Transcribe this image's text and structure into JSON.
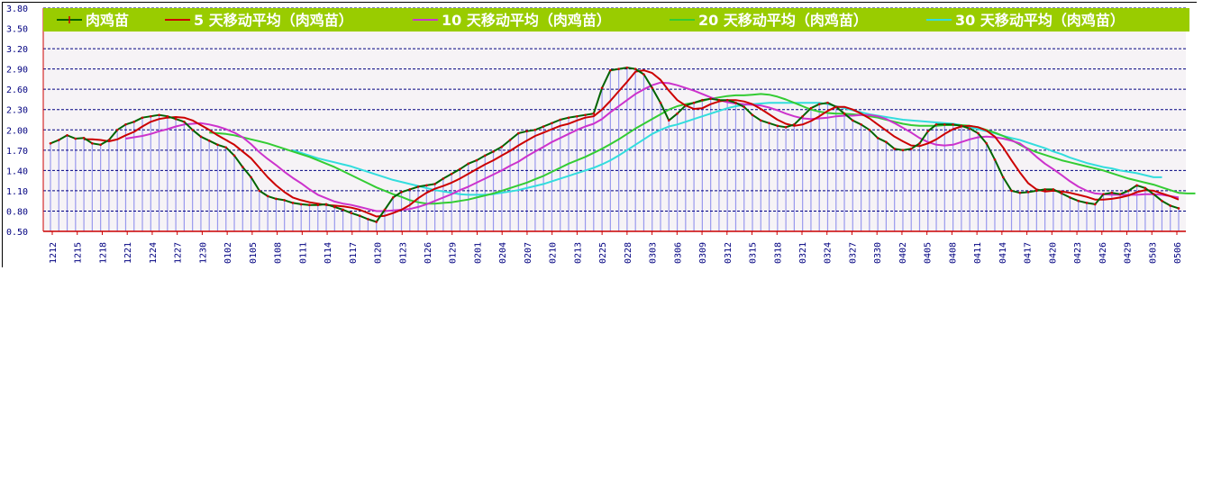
{
  "chart_data": {
    "type": "line",
    "title": "",
    "xlabel": "",
    "ylabel": "",
    "ylim": [
      0.5,
      3.8
    ],
    "yticks": [
      "3.80",
      "3.50",
      "3.20",
      "2.90",
      "2.60",
      "2.30",
      "2.00",
      "1.70",
      "1.40",
      "1.10",
      "0.80",
      "0.50"
    ],
    "grid": true,
    "legend_position": "top",
    "legend_bg": "#99cc00",
    "colors": {
      "price": "#006400",
      "ma5": "#cc0000",
      "ma10": "#cc33cc",
      "ma20": "#33cc33",
      "ma30": "#33dddd",
      "grid": "#000080",
      "bars": "#9999ee",
      "axis": "#cc0000"
    },
    "x_tick_labels": [
      "1212",
      "1215",
      "1218",
      "1221",
      "1224",
      "1227",
      "1230",
      "0102",
      "0105",
      "0108",
      "0111",
      "0114",
      "0117",
      "0120",
      "0123",
      "0126",
      "0129",
      "0201",
      "0204",
      "0207",
      "0210",
      "0213",
      "0225",
      "0228",
      "0303",
      "0306",
      "0309",
      "0312",
      "0315",
      "0318",
      "0321",
      "0324",
      "0327",
      "0330",
      "0402",
      "0405",
      "0408",
      "0411",
      "0414",
      "0417",
      "0420",
      "0423",
      "0426",
      "0429",
      "0503",
      "0506"
    ],
    "series": [
      {
        "name": "肉鸡苗",
        "values": [
          1.8,
          1.85,
          1.92,
          1.87,
          1.88,
          1.8,
          1.78,
          1.85,
          2.0,
          2.08,
          2.12,
          2.18,
          2.2,
          2.22,
          2.2,
          2.16,
          2.12,
          2.0,
          1.9,
          1.84,
          1.78,
          1.74,
          1.62,
          1.45,
          1.3,
          1.1,
          1.02,
          0.98,
          0.96,
          0.92,
          0.9,
          0.89,
          0.89,
          0.9,
          0.86,
          0.82,
          0.77,
          0.73,
          0.68,
          0.64,
          0.82,
          1.0,
          1.08,
          1.12,
          1.16,
          1.18,
          1.2,
          1.28,
          1.35,
          1.42,
          1.5,
          1.55,
          1.62,
          1.68,
          1.75,
          1.85,
          1.95,
          1.98,
          2.0,
          2.05,
          2.1,
          2.15,
          2.18,
          2.2,
          2.22,
          2.24,
          2.62,
          2.88,
          2.9,
          2.92,
          2.9,
          2.82,
          2.62,
          2.4,
          2.14,
          2.24,
          2.36,
          2.4,
          2.44,
          2.46,
          2.44,
          2.44,
          2.4,
          2.34,
          2.22,
          2.14,
          2.1,
          2.06,
          2.04,
          2.08,
          2.2,
          2.32,
          2.38,
          2.4,
          2.34,
          2.24,
          2.14,
          2.08,
          2.0,
          1.88,
          1.82,
          1.72,
          1.7,
          1.72,
          1.8,
          1.98,
          2.08,
          2.08,
          2.08,
          2.06,
          2.02,
          1.95,
          1.8,
          1.56,
          1.3,
          1.1,
          1.07,
          1.08,
          1.1,
          1.12,
          1.12,
          1.06,
          1.0,
          0.95,
          0.92,
          0.9,
          1.05,
          1.07,
          1.05,
          1.1,
          1.18,
          1.14,
          1.05,
          0.95,
          0.88,
          0.84
        ]
      },
      {
        "name": "5 天移动平均（肉鸡苗）",
        "values": [
          null,
          null,
          null,
          null,
          1.86,
          1.86,
          1.85,
          1.83,
          1.86,
          1.92,
          1.97,
          2.05,
          2.12,
          2.16,
          2.18,
          2.19,
          2.18,
          2.14,
          2.07,
          2.0,
          1.92,
          1.85,
          1.78,
          1.68,
          1.58,
          1.44,
          1.3,
          1.18,
          1.08,
          1.0,
          0.96,
          0.93,
          0.91,
          0.89,
          0.88,
          0.87,
          0.85,
          0.82,
          0.77,
          0.72,
          0.73,
          0.77,
          0.82,
          0.89,
          0.99,
          1.07,
          1.13,
          1.17,
          1.22,
          1.28,
          1.35,
          1.42,
          1.49,
          1.55,
          1.62,
          1.69,
          1.77,
          1.84,
          1.91,
          1.96,
          2.01,
          2.06,
          2.09,
          2.14,
          2.18,
          2.2,
          2.3,
          2.43,
          2.57,
          2.71,
          2.86,
          2.88,
          2.84,
          2.74,
          2.58,
          2.44,
          2.36,
          2.31,
          2.32,
          2.38,
          2.42,
          2.44,
          2.44,
          2.42,
          2.38,
          2.31,
          2.23,
          2.15,
          2.09,
          2.06,
          2.08,
          2.13,
          2.2,
          2.28,
          2.34,
          2.34,
          2.3,
          2.24,
          2.17,
          2.08,
          1.99,
          1.9,
          1.83,
          1.77,
          1.76,
          1.8,
          1.86,
          1.94,
          2.01,
          2.05,
          2.06,
          2.04,
          1.99,
          1.9,
          1.74,
          1.55,
          1.37,
          1.21,
          1.12,
          1.09,
          1.1,
          1.09,
          1.07,
          1.04,
          1.01,
          0.97,
          0.97,
          0.98,
          1.0,
          1.03,
          1.08,
          1.11,
          1.1,
          1.06,
          1.02,
          0.97
        ]
      },
      {
        "name": "10 天移动平均（肉鸡苗）",
        "values": [
          null,
          null,
          null,
          null,
          null,
          null,
          null,
          null,
          null,
          1.87,
          1.89,
          1.91,
          1.94,
          1.98,
          2.01,
          2.05,
          2.08,
          2.09,
          2.1,
          2.08,
          2.05,
          2.01,
          1.96,
          1.89,
          1.79,
          1.67,
          1.57,
          1.48,
          1.38,
          1.29,
          1.21,
          1.12,
          1.04,
          0.99,
          0.94,
          0.91,
          0.89,
          0.86,
          0.83,
          0.8,
          0.8,
          0.81,
          0.82,
          0.83,
          0.86,
          0.9,
          0.95,
          1.0,
          1.05,
          1.11,
          1.16,
          1.22,
          1.28,
          1.34,
          1.4,
          1.47,
          1.53,
          1.61,
          1.68,
          1.75,
          1.82,
          1.88,
          1.94,
          2.0,
          2.05,
          2.09,
          2.16,
          2.26,
          2.35,
          2.44,
          2.53,
          2.6,
          2.66,
          2.7,
          2.69,
          2.66,
          2.62,
          2.58,
          2.53,
          2.48,
          2.44,
          2.41,
          2.39,
          2.38,
          2.37,
          2.36,
          2.33,
          2.29,
          2.24,
          2.2,
          2.17,
          2.16,
          2.17,
          2.18,
          2.2,
          2.21,
          2.21,
          2.22,
          2.22,
          2.2,
          2.16,
          2.1,
          2.03,
          1.96,
          1.88,
          1.82,
          1.78,
          1.77,
          1.78,
          1.82,
          1.86,
          1.89,
          1.9,
          1.89,
          1.87,
          1.84,
          1.8,
          1.71,
          1.6,
          1.5,
          1.42,
          1.33,
          1.24,
          1.16,
          1.1,
          1.06,
          1.05,
          1.04,
          1.04,
          1.04,
          1.04,
          1.05,
          1.05,
          1.04,
          1.02,
          1.0
        ]
      },
      {
        "name": "20 天移动平均（肉鸡苗）",
        "values": [
          null,
          null,
          null,
          null,
          null,
          null,
          null,
          null,
          null,
          null,
          null,
          null,
          null,
          null,
          null,
          null,
          null,
          null,
          null,
          1.96,
          1.95,
          1.94,
          1.92,
          1.89,
          1.86,
          1.83,
          1.8,
          1.76,
          1.72,
          1.68,
          1.64,
          1.6,
          1.55,
          1.5,
          1.45,
          1.39,
          1.33,
          1.27,
          1.21,
          1.15,
          1.1,
          1.05,
          1.01,
          0.96,
          0.93,
          0.91,
          0.91,
          0.92,
          0.93,
          0.95,
          0.97,
          1.0,
          1.03,
          1.06,
          1.1,
          1.14,
          1.18,
          1.22,
          1.27,
          1.32,
          1.38,
          1.44,
          1.5,
          1.55,
          1.6,
          1.66,
          1.72,
          1.79,
          1.86,
          1.94,
          2.02,
          2.09,
          2.16,
          2.23,
          2.3,
          2.35,
          2.38,
          2.4,
          2.43,
          2.46,
          2.48,
          2.5,
          2.51,
          2.51,
          2.52,
          2.53,
          2.52,
          2.49,
          2.45,
          2.4,
          2.35,
          2.3,
          2.27,
          2.25,
          2.24,
          2.24,
          2.23,
          2.22,
          2.2,
          2.18,
          2.15,
          2.12,
          2.09,
          2.07,
          2.06,
          2.06,
          2.06,
          2.07,
          2.07,
          2.07,
          2.06,
          2.04,
          2.0,
          1.96,
          1.91,
          1.85,
          1.78,
          1.72,
          1.67,
          1.63,
          1.59,
          1.55,
          1.52,
          1.49,
          1.46,
          1.43,
          1.4,
          1.36,
          1.32,
          1.28,
          1.25,
          1.22,
          1.19,
          1.15,
          1.11,
          1.07,
          1.06,
          1.06
        ]
      },
      {
        "name": "30 天移动平均（肉鸡苗）",
        "values": [
          null,
          null,
          null,
          null,
          null,
          null,
          null,
          null,
          null,
          null,
          null,
          null,
          null,
          null,
          null,
          null,
          null,
          null,
          null,
          null,
          null,
          null,
          null,
          null,
          null,
          null,
          null,
          null,
          null,
          1.7,
          1.66,
          1.62,
          1.58,
          1.55,
          1.52,
          1.49,
          1.46,
          1.42,
          1.38,
          1.34,
          1.3,
          1.26,
          1.23,
          1.2,
          1.17,
          1.14,
          1.11,
          1.09,
          1.07,
          1.05,
          1.04,
          1.04,
          1.04,
          1.05,
          1.07,
          1.09,
          1.11,
          1.14,
          1.17,
          1.2,
          1.24,
          1.28,
          1.32,
          1.36,
          1.4,
          1.44,
          1.49,
          1.55,
          1.62,
          1.7,
          1.78,
          1.86,
          1.94,
          2.0,
          2.05,
          2.08,
          2.12,
          2.16,
          2.2,
          2.24,
          2.28,
          2.32,
          2.35,
          2.37,
          2.38,
          2.39,
          2.4,
          2.4,
          2.4,
          2.4,
          2.4,
          2.4,
          2.4,
          2.38,
          2.35,
          2.32,
          2.29,
          2.26,
          2.23,
          2.21,
          2.19,
          2.17,
          2.15,
          2.14,
          2.13,
          2.12,
          2.11,
          2.1,
          2.09,
          2.07,
          2.04,
          2.01,
          1.98,
          1.95,
          1.91,
          1.88,
          1.85,
          1.81,
          1.77,
          1.73,
          1.68,
          1.64,
          1.59,
          1.55,
          1.51,
          1.48,
          1.45,
          1.43,
          1.4,
          1.38,
          1.36,
          1.33,
          1.3,
          1.3
        ]
      }
    ]
  }
}
